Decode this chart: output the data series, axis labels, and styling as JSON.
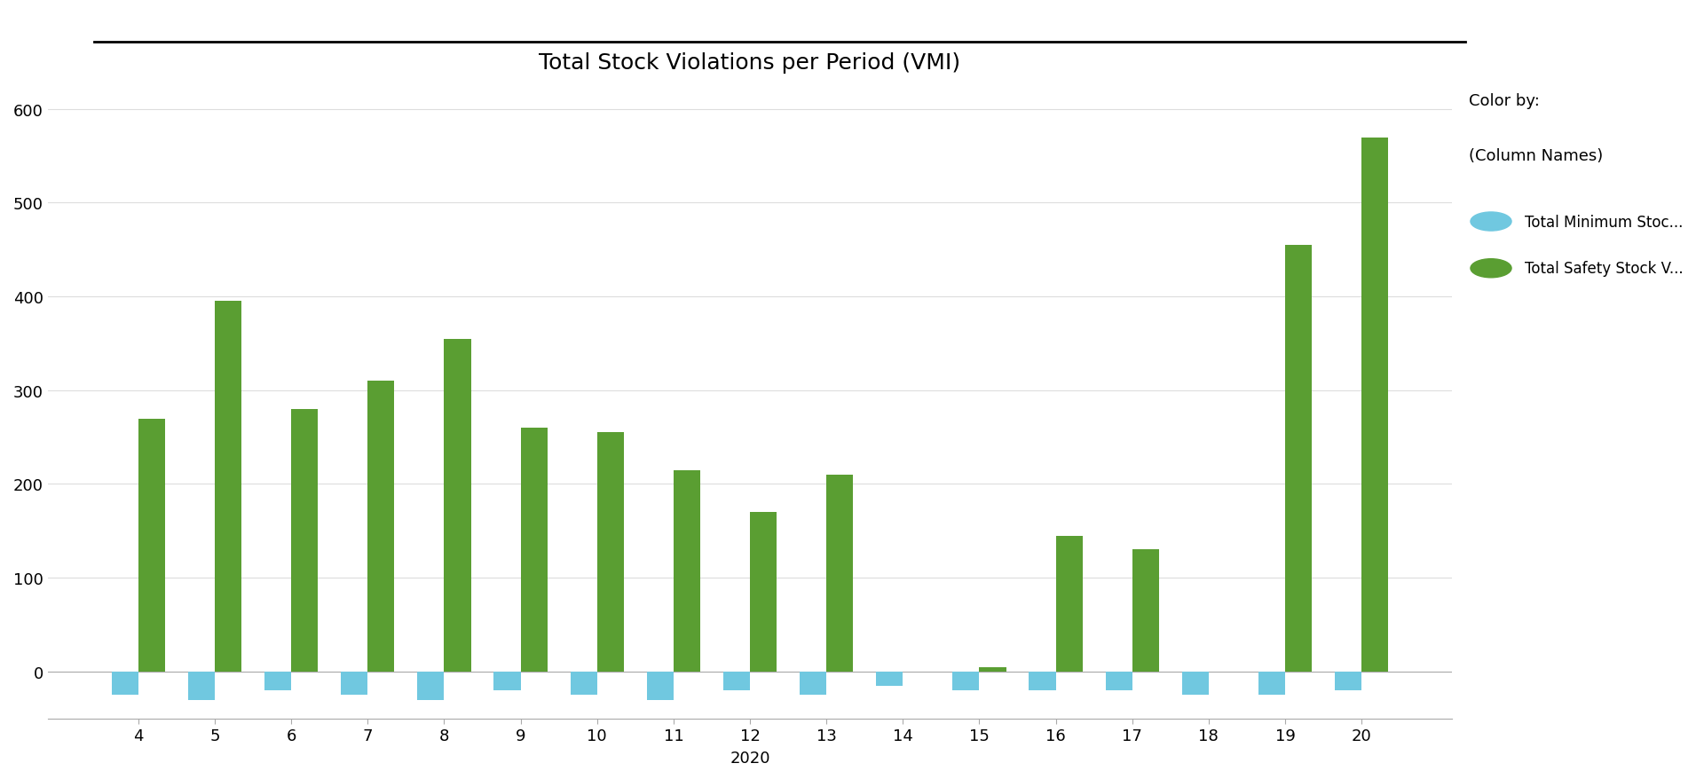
{
  "title": "Total Stock Violations per Period (VMI)",
  "xlabel": "2020",
  "categories": [
    4,
    5,
    6,
    7,
    8,
    9,
    10,
    11,
    12,
    13,
    14,
    15,
    16,
    17,
    18,
    19,
    20
  ],
  "safety_stock": [
    270,
    395,
    280,
    310,
    355,
    260,
    255,
    215,
    170,
    210,
    0,
    5,
    145,
    130,
    0,
    455,
    570
  ],
  "min_stock": [
    -25,
    -30,
    -20,
    -25,
    -30,
    -20,
    -25,
    -30,
    -20,
    -25,
    -15,
    -20,
    -20,
    -20,
    -25,
    -25,
    -20
  ],
  "safety_color": "#5a9e32",
  "min_color": "#70c8e0",
  "background_color": "#ffffff",
  "ylim_min": -50,
  "ylim_max": 625,
  "yticks": [
    0,
    100,
    200,
    300,
    400,
    500,
    600
  ],
  "legend_title": "Color by:",
  "legend_subtitle": "(Column Names)",
  "legend_label_min": "Total Minimum Stoc...",
  "legend_label_safety": "Total Safety Stock V...",
  "title_fontsize": 18,
  "axis_fontsize": 13,
  "tick_fontsize": 13,
  "bar_width": 0.35
}
